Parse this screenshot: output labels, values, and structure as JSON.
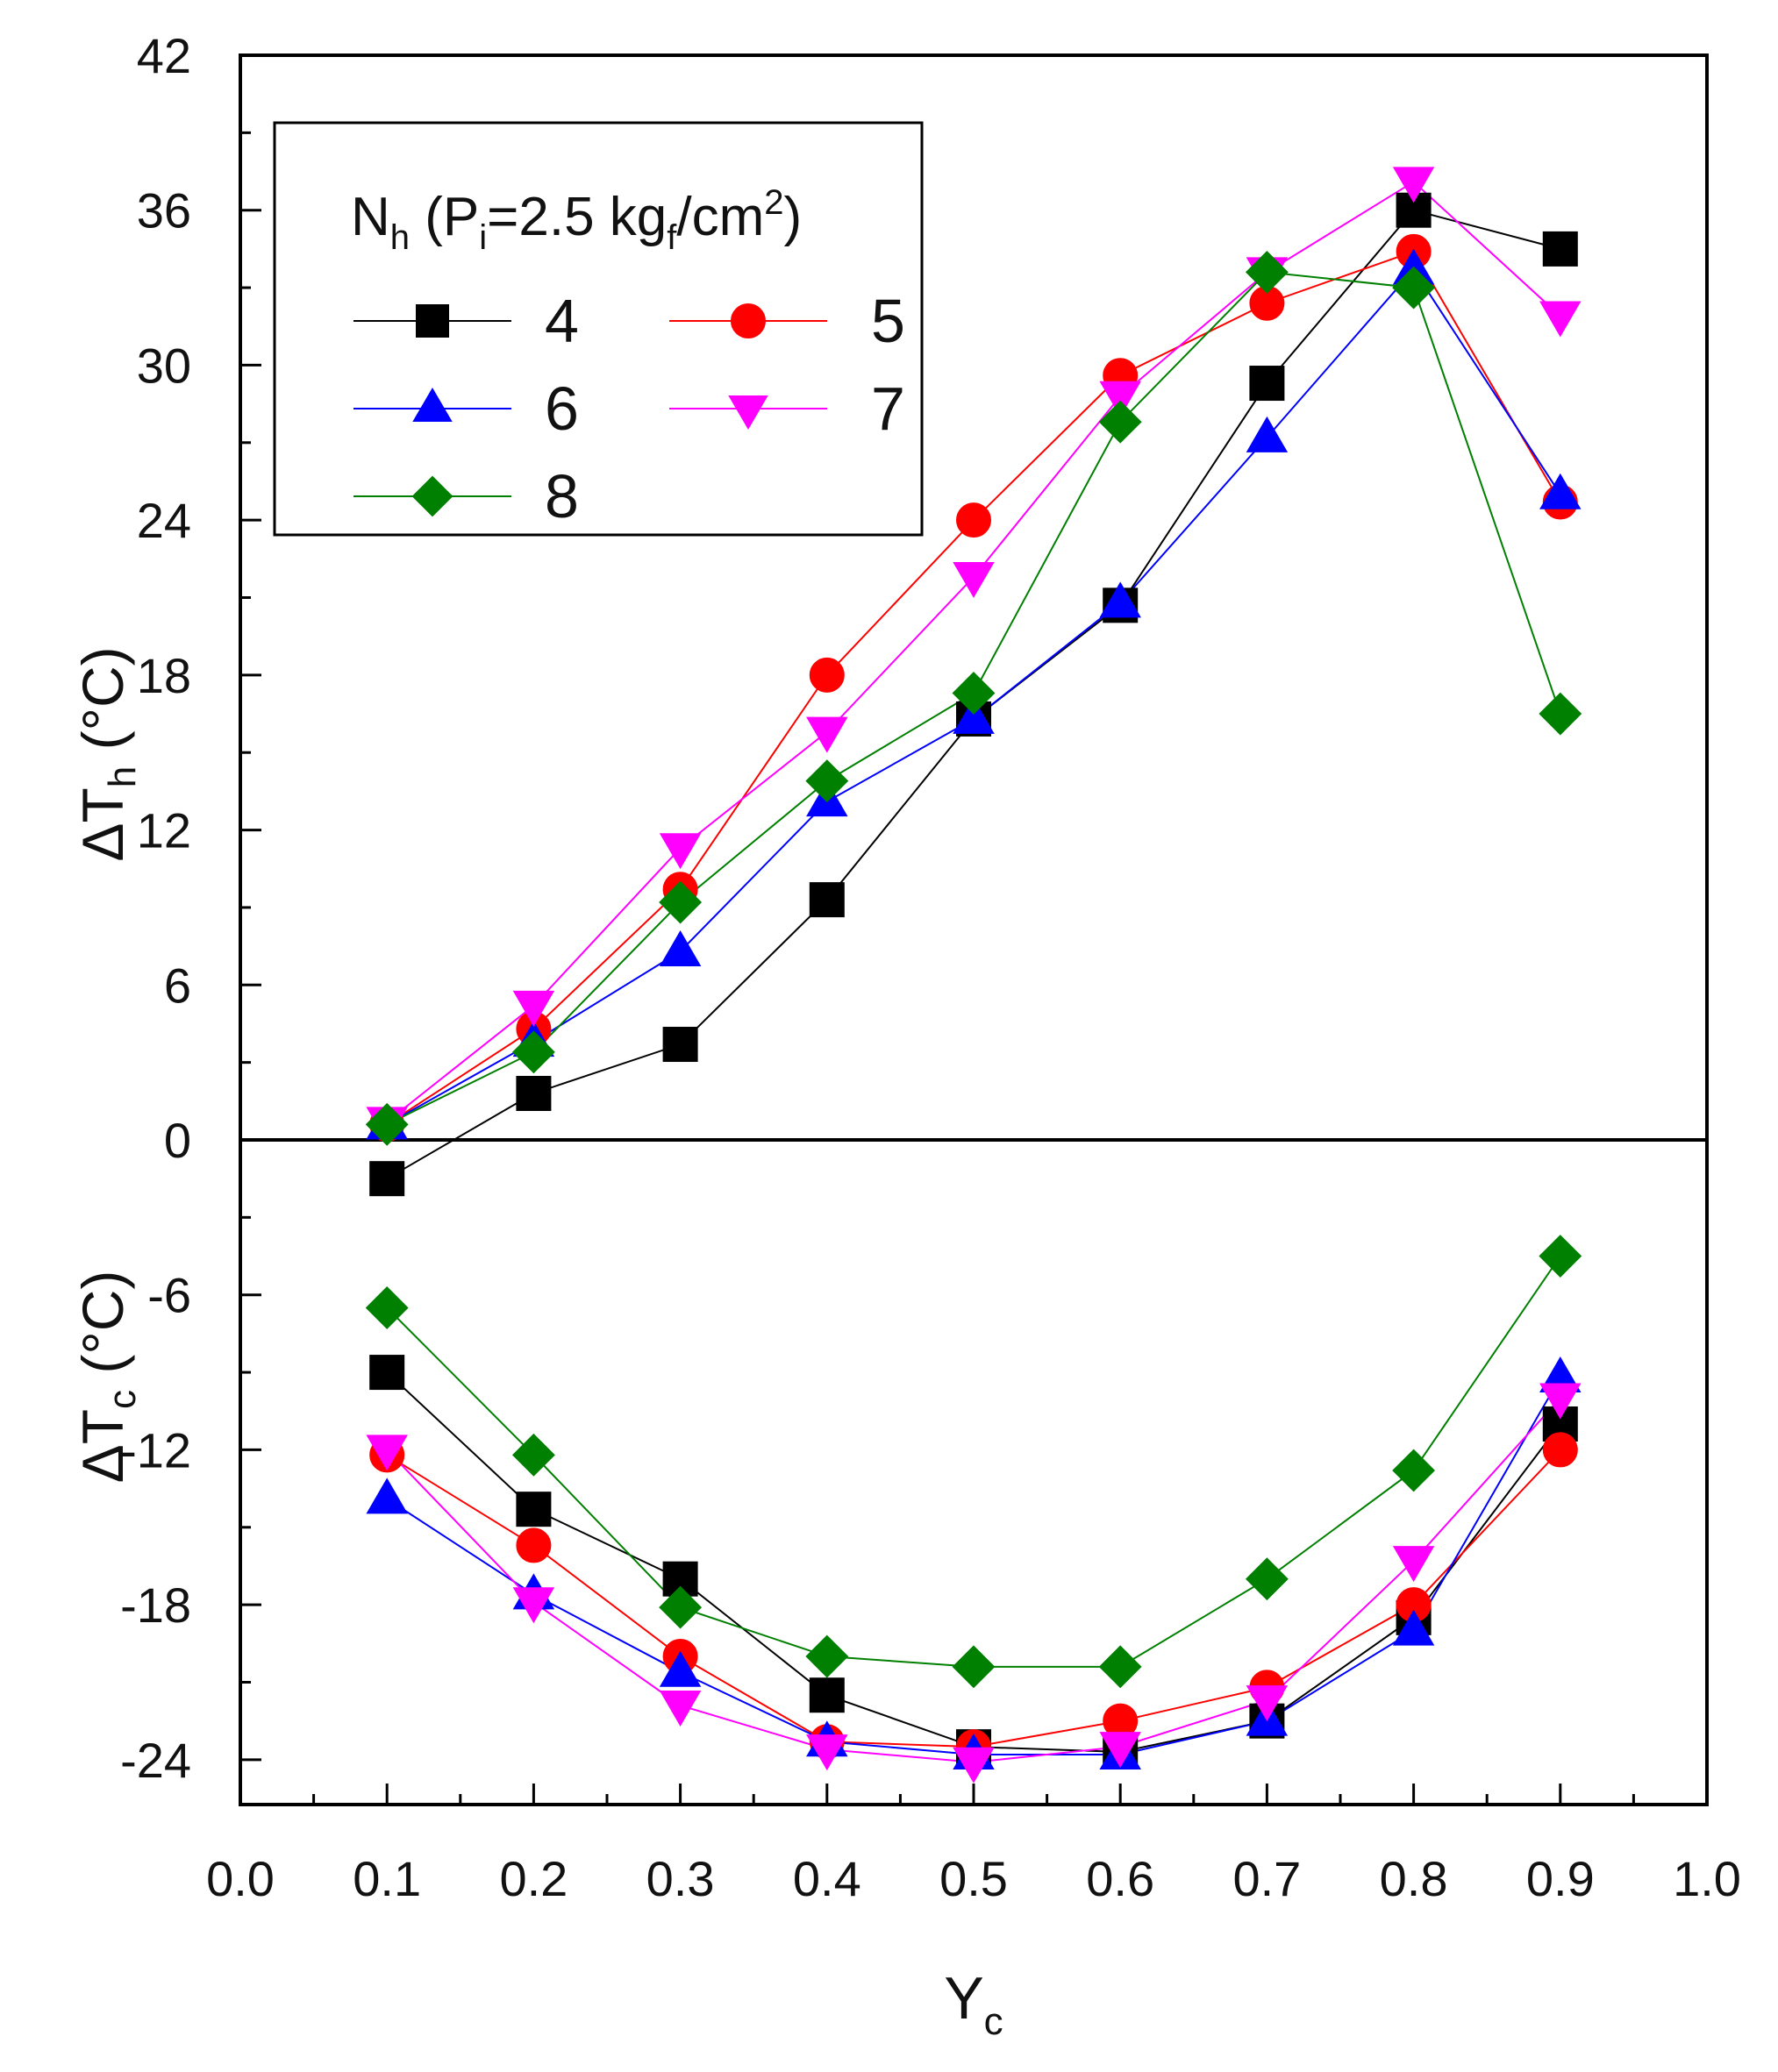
{
  "chart_data": {
    "type": "line",
    "xlabel": "Y",
    "xlabel_sub": "c",
    "ylabel_upper": {
      "prefix": "ΔT",
      "sub": "h",
      "suffix": " (°C)"
    },
    "ylabel_lower": {
      "prefix": "ΔT",
      "sub": "c",
      "suffix": " (°C)"
    },
    "xlim": [
      0.0,
      1.0
    ],
    "ylim": [
      -26,
      42
    ],
    "x_ticks": [
      "0.0",
      "0.1",
      "0.2",
      "0.3",
      "0.4",
      "0.5",
      "0.6",
      "0.7",
      "0.8",
      "0.9",
      "1.0"
    ],
    "y_ticks": [
      "42",
      "36",
      "30",
      "24",
      "18",
      "12",
      "6",
      "0",
      "-6",
      "-12",
      "-18",
      "-24"
    ],
    "zero_line": true,
    "legend": {
      "position": "top-left",
      "title": {
        "main": "N",
        "main_sub": "h",
        "open": " (P",
        "p_sub": "i",
        "mid": "=2.5 kg",
        "kg_sub": "f",
        "unit": "/cm",
        "sup": "2",
        "close": ")"
      }
    },
    "x": [
      0.1,
      0.2,
      0.3,
      0.4,
      0.5,
      0.6,
      0.7,
      0.8,
      0.9
    ],
    "series": [
      {
        "name": "4",
        "color": "#000000",
        "marker": "square",
        "hot": [
          -1.5,
          1.8,
          3.7,
          9.3,
          16.3,
          20.7,
          29.3,
          36.0,
          34.5
        ],
        "cold": [
          -9.0,
          -14.3,
          -17.0,
          -21.5,
          -23.5,
          -23.7,
          -22.5,
          -18.5,
          -11.0
        ]
      },
      {
        "name": "5",
        "color": "#ff0000",
        "marker": "circle",
        "hot": [
          0.6,
          4.3,
          9.7,
          18.0,
          24.0,
          29.6,
          32.4,
          34.4,
          24.7
        ],
        "cold": [
          -12.2,
          -15.7,
          -20.0,
          -23.3,
          -23.5,
          -22.5,
          -21.2,
          -18.0,
          -12.0
        ]
      },
      {
        "name": "6",
        "color": "#0000ff",
        "marker": "triangle-up",
        "hot": [
          0.6,
          3.8,
          7.3,
          13.1,
          16.3,
          20.8,
          27.2,
          33.7,
          25.0
        ],
        "cold": [
          -13.9,
          -17.6,
          -20.6,
          -23.3,
          -23.8,
          -23.8,
          -22.5,
          -19.0,
          -9.2
        ]
      },
      {
        "name": "7",
        "color": "#ff00ff",
        "marker": "triangle-down",
        "hot": [
          0.7,
          5.2,
          11.3,
          15.8,
          21.8,
          28.8,
          33.6,
          37.1,
          31.9
        ],
        "cold": [
          -12.0,
          -17.9,
          -21.9,
          -23.6,
          -24.1,
          -23.5,
          -21.7,
          -16.3,
          -10.0
        ]
      },
      {
        "name": "8",
        "color": "#008000",
        "marker": "diamond",
        "hot": [
          0.6,
          3.4,
          9.2,
          13.9,
          17.3,
          27.8,
          33.6,
          33.0,
          16.5
        ],
        "cold": [
          -6.5,
          -12.2,
          -18.1,
          -20.0,
          -20.4,
          -20.4,
          -17.0,
          -12.8,
          -4.5
        ]
      }
    ]
  }
}
